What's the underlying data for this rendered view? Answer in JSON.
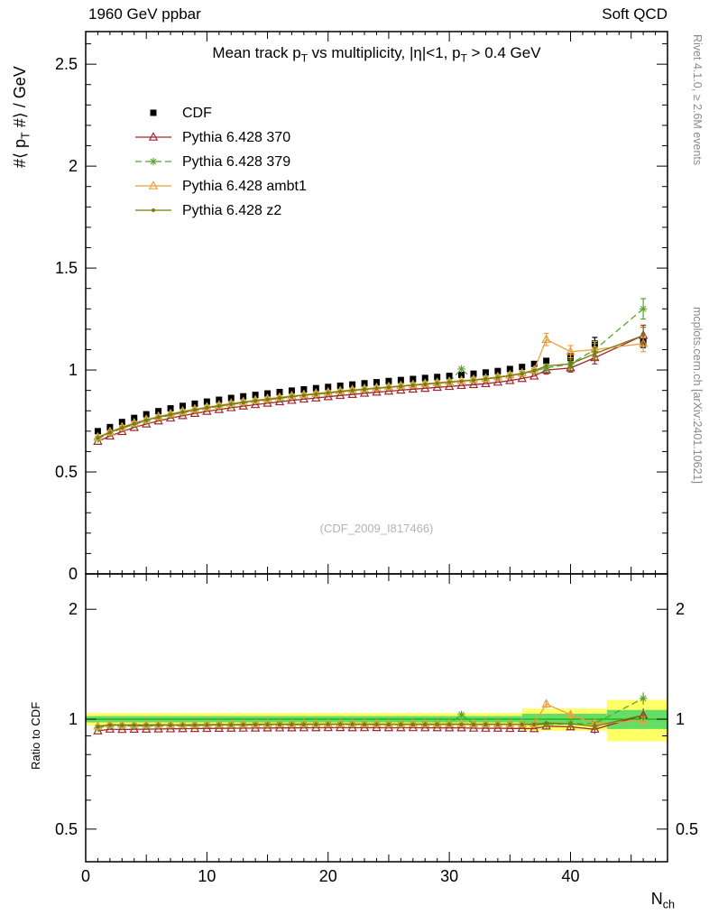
{
  "header": {
    "left": "1960 GeV ppbar",
    "right": "Soft QCD"
  },
  "labels": {
    "title_pre": "Mean track p",
    "title_sub1": "T",
    "title_mid": " vs multiplicity, |η|<1, p",
    "title_sub2": "T",
    "title_post": " > 0.4 GeV",
    "y_pre": "#⟨ p",
    "y_sub": "T",
    "y_post": " #⟩ / GeV",
    "ratio_y": "Ratio to CDF",
    "x_pre": "N",
    "x_sub": "ch",
    "watermark": "(CDF_2009_I817466)",
    "side_top": "Rivet 4.1.0, ≥ 2.6M events",
    "side_bottom": "mcplots.cern.ch [arXiv:2401.10621]"
  },
  "chart_data": {
    "type": "line",
    "title": "Mean track pT vs multiplicity, |η|<1, pT > 0.4 GeV",
    "xlabel": "N_ch",
    "ylabel": "⟨p_T⟩ / GeV",
    "ratio_ylabel": "Ratio to CDF",
    "x_range": [
      0,
      48
    ],
    "main_y_range": [
      0,
      2.66
    ],
    "main_y_major_ticks": [
      0,
      0.5,
      1,
      1.5,
      2,
      2.5
    ],
    "main_y_tick_labels": [
      "0",
      "0.5",
      "1",
      "1.5",
      "2",
      "2.5"
    ],
    "x_major_ticks": [
      0,
      10,
      20,
      30,
      40
    ],
    "x_tick_labels": [
      "0",
      "10",
      "20",
      "30",
      "40"
    ],
    "ratio_y_range": [
      0.407,
      2.5
    ],
    "ratio_log": true,
    "ratio_major_ticks": [
      0.5,
      1,
      2
    ],
    "ratio_tick_labels": [
      "0.5",
      "1",
      "2"
    ],
    "ratio_minor_ticks": [
      0.6,
      0.7,
      0.8,
      0.9
    ],
    "band_colors": {
      "yellow": "#ffff66",
      "green": "#66dd66"
    },
    "ratio_ref_color": "#00a000",
    "ratio_reference": 1,
    "ratio_bands": [
      {
        "x0": 0,
        "x1": 36,
        "green": 0.02,
        "yellow": 0.04
      },
      {
        "x0": 36,
        "x1": 43,
        "green": 0.035,
        "yellow": 0.07
      },
      {
        "x0": 43,
        "x1": 48,
        "green": 0.06,
        "yellow": 0.13
      }
    ],
    "x": [
      1,
      2,
      3,
      4,
      5,
      6,
      7,
      8,
      9,
      10,
      11,
      12,
      13,
      14,
      15,
      16,
      17,
      18,
      19,
      20,
      21,
      22,
      23,
      24,
      25,
      26,
      27,
      28,
      29,
      30,
      31,
      32,
      33,
      34,
      35,
      36,
      37,
      38,
      40,
      42,
      46
    ],
    "series": [
      {
        "name": "CDF",
        "color": "#000000",
        "marker": "square",
        "line": "none",
        "values": [
          0.7,
          0.72,
          0.745,
          0.765,
          0.783,
          0.798,
          0.812,
          0.824,
          0.835,
          0.845,
          0.854,
          0.863,
          0.871,
          0.878,
          0.885,
          0.892,
          0.899,
          0.905,
          0.911,
          0.917,
          0.923,
          0.929,
          0.935,
          0.94,
          0.946,
          0.951,
          0.956,
          0.961,
          0.966,
          0.971,
          0.976,
          0.982,
          0.988,
          0.995,
          1.005,
          1.015,
          1.03,
          1.045,
          1.06,
          1.13,
          1.14
        ],
        "errors": [
          [
            40,
            0.02
          ],
          [
            42,
            0.03
          ],
          [
            46,
            0.03
          ]
        ]
      },
      {
        "name": "Pythia 6.428 370",
        "color": "#a12830",
        "marker": "triangle-open",
        "line": "solid",
        "values": [
          0.65,
          0.676,
          0.698,
          0.718,
          0.735,
          0.75,
          0.764,
          0.776,
          0.787,
          0.797,
          0.806,
          0.815,
          0.823,
          0.83,
          0.837,
          0.844,
          0.851,
          0.857,
          0.863,
          0.869,
          0.875,
          0.88,
          0.886,
          0.891,
          0.896,
          0.901,
          0.906,
          0.91,
          0.915,
          0.919,
          0.924,
          0.928,
          0.933,
          0.94,
          0.948,
          0.958,
          0.97,
          1.0,
          1.01,
          1.06,
          1.17
        ],
        "errors": [
          [
            38,
            0.02
          ],
          [
            40,
            0.02
          ],
          [
            42,
            0.03
          ],
          [
            46,
            0.05
          ]
        ]
      },
      {
        "name": "Pythia 6.428 379",
        "color": "#55a629",
        "marker": "star",
        "line": "dash",
        "values": [
          0.663,
          0.69,
          0.713,
          0.733,
          0.75,
          0.765,
          0.779,
          0.791,
          0.802,
          0.813,
          0.822,
          0.831,
          0.839,
          0.847,
          0.854,
          0.861,
          0.868,
          0.875,
          0.881,
          0.887,
          0.893,
          0.899,
          0.905,
          0.91,
          0.916,
          0.921,
          0.926,
          0.931,
          0.936,
          0.941,
          1.005,
          0.951,
          0.957,
          0.964,
          0.972,
          0.982,
          0.995,
          1.01,
          1.03,
          1.1,
          1.3
        ],
        "errors": [
          [
            38,
            0.02
          ],
          [
            40,
            0.03
          ],
          [
            42,
            0.03
          ],
          [
            46,
            0.05
          ]
        ]
      },
      {
        "name": "Pythia 6.428 ambt1",
        "color": "#e9a13b",
        "marker": "triangle-open",
        "line": "solid",
        "values": [
          0.67,
          0.697,
          0.72,
          0.74,
          0.757,
          0.772,
          0.785,
          0.797,
          0.808,
          0.818,
          0.827,
          0.836,
          0.844,
          0.852,
          0.859,
          0.866,
          0.873,
          0.879,
          0.885,
          0.891,
          0.897,
          0.903,
          0.908,
          0.913,
          0.918,
          0.923,
          0.928,
          0.933,
          0.938,
          0.943,
          0.948,
          0.953,
          0.959,
          0.966,
          0.975,
          0.985,
          1.0,
          1.15,
          1.09,
          1.1,
          1.13
        ],
        "errors": [
          [
            38,
            0.03
          ],
          [
            40,
            0.03
          ],
          [
            42,
            0.04
          ],
          [
            46,
            0.04
          ]
        ]
      },
      {
        "name": "Pythia 6.428 z2",
        "color": "#7a7a10",
        "marker": "dot",
        "line": "solid",
        "values": [
          0.668,
          0.694,
          0.717,
          0.737,
          0.754,
          0.769,
          0.782,
          0.794,
          0.805,
          0.815,
          0.824,
          0.833,
          0.841,
          0.849,
          0.856,
          0.863,
          0.87,
          0.876,
          0.882,
          0.888,
          0.894,
          0.9,
          0.905,
          0.91,
          0.915,
          0.92,
          0.925,
          0.93,
          0.935,
          0.94,
          0.945,
          0.95,
          0.956,
          0.963,
          0.972,
          0.982,
          0.997,
          1.02,
          1.03,
          1.08,
          1.17
        ],
        "errors": [
          [
            40,
            0.02
          ],
          [
            42,
            0.03
          ],
          [
            46,
            0.04
          ]
        ]
      }
    ],
    "legend_position": "top-left"
  }
}
